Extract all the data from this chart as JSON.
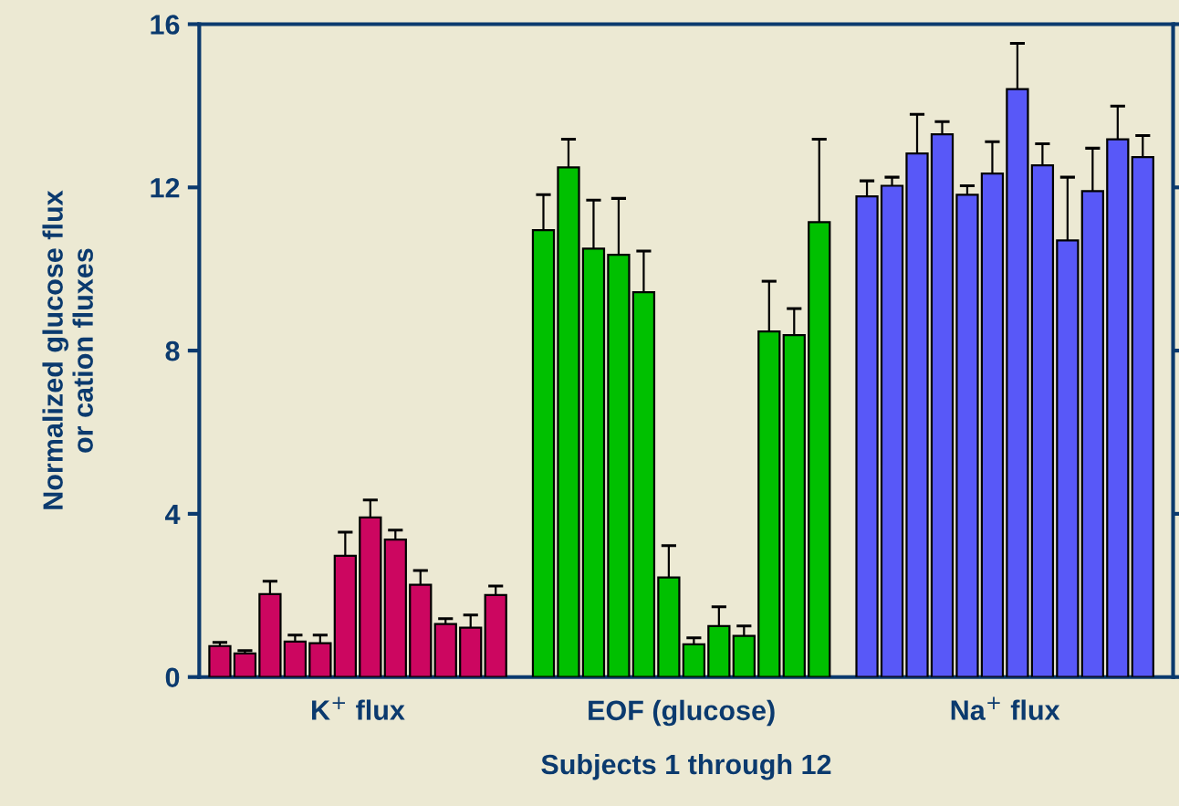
{
  "chart_data": {
    "type": "bar",
    "xlabel": "Subjects 1 through 12",
    "ylabel": "Normalized glucose flux\nor cation fluxes",
    "categories": [
      "K$^{+}$ flux",
      "EOF (glucose)",
      "Na$^{+}$ flux"
    ],
    "ylim": [
      0,
      16
    ],
    "yticks": [
      0,
      4,
      8,
      12,
      16
    ],
    "grid": false,
    "series": [
      {
        "colors": [
          "#cc0660",
          "#00c000",
          "#5858f8"
        ],
        "values": [
          0.76,
          10.95,
          11.78
        ],
        "errors": [
          [
            0.76,
            0.85
          ],
          [
            10.95,
            11.82
          ],
          [
            11.78,
            12.16
          ]
        ]
      },
      {
        "colors": [
          "#cc0660",
          "#00c000",
          "#5858f8"
        ],
        "values": [
          0.58,
          12.49,
          12.04
        ],
        "errors": [
          [
            0.58,
            0.65
          ],
          [
            12.49,
            13.18
          ],
          [
            12.04,
            12.25
          ]
        ]
      },
      {
        "colors": [
          "#cc0660",
          "#00c000",
          "#5858f8"
        ],
        "values": [
          2.03,
          10.5,
          12.83
        ],
        "errors": [
          [
            2.03,
            2.35
          ],
          [
            10.5,
            11.69
          ],
          [
            12.83,
            13.79
          ]
        ]
      },
      {
        "colors": [
          "#cc0660",
          "#00c000",
          "#5858f8"
        ],
        "values": [
          0.87,
          10.35,
          13.3
        ],
        "errors": [
          [
            0.87,
            1.03
          ],
          [
            10.35,
            11.73
          ],
          [
            13.3,
            13.61
          ]
        ]
      },
      {
        "colors": [
          "#cc0660",
          "#00c000",
          "#5858f8"
        ],
        "values": [
          0.83,
          9.43,
          11.82
        ],
        "errors": [
          [
            0.83,
            1.03
          ],
          [
            9.43,
            10.44
          ],
          [
            11.82,
            12.04
          ]
        ]
      },
      {
        "colors": [
          "#cc0660",
          "#00c000",
          "#5858f8"
        ],
        "values": [
          2.97,
          2.44,
          12.34
        ],
        "errors": [
          [
            2.97,
            3.55
          ],
          [
            2.44,
            3.22
          ],
          [
            12.34,
            13.12
          ]
        ]
      },
      {
        "colors": [
          "#cc0660",
          "#00c000",
          "#5858f8"
        ],
        "values": [
          3.91,
          0.8,
          14.41
        ],
        "errors": [
          [
            3.91,
            4.34
          ],
          [
            0.8,
            0.96
          ],
          [
            14.41,
            15.53
          ]
        ]
      },
      {
        "colors": [
          "#cc0660",
          "#00c000",
          "#5858f8"
        ],
        "values": [
          3.37,
          1.25,
          12.54
        ],
        "errors": [
          [
            3.37,
            3.6
          ],
          [
            1.25,
            1.72
          ],
          [
            12.54,
            13.07
          ]
        ]
      },
      {
        "colors": [
          "#cc0660",
          "#00c000",
          "#5858f8"
        ],
        "values": [
          2.26,
          1.01,
          10.7
        ],
        "errors": [
          [
            2.26,
            2.61
          ],
          [
            1.01,
            1.25
          ],
          [
            10.7,
            12.25
          ]
        ]
      },
      {
        "colors": [
          "#cc0660",
          "#00c000",
          "#5858f8"
        ],
        "values": [
          1.3,
          8.47,
          11.91
        ],
        "errors": [
          [
            1.3,
            1.43
          ],
          [
            8.47,
            9.7
          ],
          [
            11.91,
            12.96
          ]
        ]
      },
      {
        "colors": [
          "#cc0660",
          "#00c000",
          "#5858f8"
        ],
        "values": [
          1.21,
          8.38,
          13.18
        ],
        "errors": [
          [
            1.21,
            1.52
          ],
          [
            8.38,
            9.03
          ],
          [
            13.18,
            13.99
          ]
        ]
      },
      {
        "colors": [
          "#cc0660",
          "#00c000",
          "#5858f8"
        ],
        "values": [
          2.01,
          11.15,
          12.74
        ],
        "errors": [
          [
            2.01,
            2.23
          ],
          [
            11.15,
            13.18
          ],
          [
            12.74,
            13.27
          ]
        ]
      }
    ]
  }
}
